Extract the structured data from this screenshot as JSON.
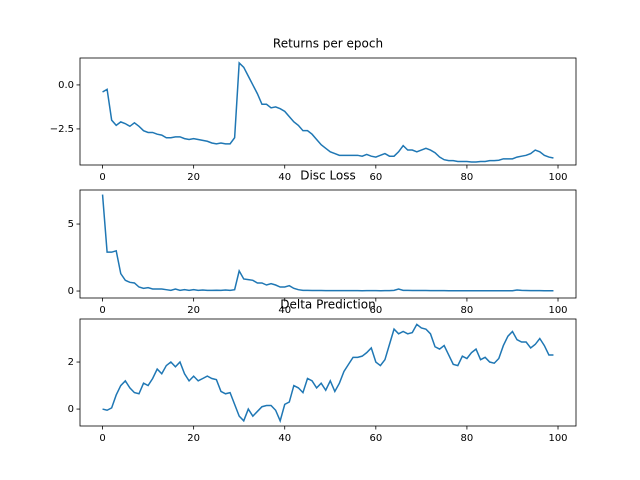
{
  "chart_data": [
    {
      "type": "line",
      "title": "Returns per epoch",
      "color": "#1f77b4",
      "x": [
        0,
        1,
        2,
        3,
        4,
        5,
        6,
        7,
        8,
        9,
        10,
        11,
        12,
        13,
        14,
        15,
        16,
        17,
        18,
        19,
        20,
        21,
        22,
        23,
        24,
        25,
        26,
        27,
        28,
        29,
        30,
        31,
        32,
        33,
        34,
        35,
        36,
        37,
        38,
        39,
        40,
        41,
        42,
        43,
        44,
        45,
        46,
        47,
        48,
        49,
        50,
        51,
        52,
        53,
        54,
        55,
        56,
        57,
        58,
        59,
        60,
        61,
        62,
        63,
        64,
        65,
        66,
        67,
        68,
        69,
        70,
        71,
        72,
        73,
        74,
        75,
        76,
        77,
        78,
        79,
        80,
        81,
        82,
        83,
        84,
        85,
        86,
        87,
        88,
        89,
        90,
        91,
        92,
        93,
        94,
        95,
        96,
        97,
        98,
        99
      ],
      "values": [
        -0.4,
        -0.25,
        -2.0,
        -2.3,
        -2.1,
        -2.2,
        -2.35,
        -2.15,
        -2.35,
        -2.6,
        -2.7,
        -2.7,
        -2.8,
        -2.85,
        -3.0,
        -3.0,
        -2.95,
        -2.95,
        -3.05,
        -3.1,
        -3.05,
        -3.1,
        -3.15,
        -3.2,
        -3.3,
        -3.35,
        -3.3,
        -3.35,
        -3.35,
        -3.0,
        1.25,
        1.0,
        0.5,
        0.0,
        -0.5,
        -1.1,
        -1.1,
        -1.3,
        -1.25,
        -1.35,
        -1.5,
        -1.8,
        -2.1,
        -2.3,
        -2.6,
        -2.6,
        -2.8,
        -3.1,
        -3.4,
        -3.6,
        -3.8,
        -3.9,
        -4.0,
        -4.0,
        -4.0,
        -4.0,
        -4.0,
        -4.05,
        -3.95,
        -4.05,
        -4.1,
        -4.0,
        -3.9,
        -4.05,
        -4.05,
        -3.8,
        -3.45,
        -3.7,
        -3.7,
        -3.8,
        -3.7,
        -3.6,
        -3.7,
        -3.85,
        -4.1,
        -4.25,
        -4.3,
        -4.3,
        -4.35,
        -4.35,
        -4.35,
        -4.38,
        -4.38,
        -4.35,
        -4.35,
        -4.3,
        -4.3,
        -4.28,
        -4.2,
        -4.2,
        -4.2,
        -4.1,
        -4.05,
        -4.0,
        -3.9,
        -3.7,
        -3.8,
        -4.0,
        -4.1,
        -4.15
      ],
      "xlim": [
        -4.95,
        103.95
      ],
      "xticks": [
        0,
        20,
        40,
        60,
        80,
        100
      ],
      "ylim": [
        -4.55,
        1.53
      ],
      "yticks": [
        {
          "value": 0,
          "label": "0.0"
        },
        {
          "value": -2.5,
          "label": "−2.5"
        }
      ]
    },
    {
      "type": "line",
      "title": "Disc Loss",
      "color": "#1f77b4",
      "x": [
        0,
        1,
        2,
        3,
        4,
        5,
        6,
        7,
        8,
        9,
        10,
        11,
        12,
        13,
        14,
        15,
        16,
        17,
        18,
        19,
        20,
        21,
        22,
        23,
        24,
        25,
        26,
        27,
        28,
        29,
        30,
        31,
        32,
        33,
        34,
        35,
        36,
        37,
        38,
        39,
        40,
        41,
        42,
        43,
        44,
        45,
        46,
        47,
        48,
        49,
        50,
        51,
        52,
        53,
        54,
        55,
        56,
        57,
        58,
        59,
        60,
        61,
        62,
        63,
        64,
        65,
        66,
        67,
        68,
        69,
        70,
        71,
        72,
        73,
        74,
        75,
        76,
        77,
        78,
        79,
        80,
        81,
        82,
        83,
        84,
        85,
        86,
        87,
        88,
        89,
        90,
        91,
        92,
        93,
        94,
        95,
        96,
        97,
        98,
        99
      ],
      "values": [
        7.2,
        2.9,
        2.9,
        3.0,
        1.3,
        0.8,
        0.65,
        0.6,
        0.3,
        0.2,
        0.25,
        0.15,
        0.15,
        0.15,
        0.1,
        0.05,
        0.15,
        0.05,
        0.1,
        0.05,
        0.1,
        0.05,
        0.08,
        0.05,
        0.05,
        0.06,
        0.05,
        0.08,
        0.05,
        0.1,
        1.5,
        0.9,
        0.85,
        0.8,
        0.6,
        0.6,
        0.45,
        0.55,
        0.45,
        0.3,
        0.3,
        0.4,
        0.2,
        0.1,
        0.05,
        0.05,
        0.04,
        0.04,
        0.04,
        0.03,
        0.03,
        0.03,
        0.03,
        0.03,
        0.03,
        0.03,
        0.03,
        0.02,
        0.03,
        0.03,
        0.03,
        0.02,
        0.03,
        0.03,
        0.05,
        0.15,
        0.05,
        0.05,
        0.04,
        0.04,
        0.04,
        0.04,
        0.03,
        0.03,
        0.03,
        0.03,
        0.02,
        0.02,
        0.02,
        0.02,
        0.02,
        0.02,
        0.02,
        0.02,
        0.02,
        0.02,
        0.02,
        0.02,
        0.02,
        0.02,
        0.02,
        0.08,
        0.05,
        0.04,
        0.03,
        0.03,
        0.03,
        0.02,
        0.02,
        0.02
      ],
      "xlim": [
        -4.95,
        103.95
      ],
      "xticks": [
        0,
        20,
        40,
        60,
        80,
        100
      ],
      "ylim": [
        -0.52,
        7.54
      ],
      "yticks": [
        0,
        5
      ]
    },
    {
      "type": "line",
      "title": "Delta Prediction",
      "color": "#1f77b4",
      "x": [
        0,
        1,
        2,
        3,
        4,
        5,
        6,
        7,
        8,
        9,
        10,
        11,
        12,
        13,
        14,
        15,
        16,
        17,
        18,
        19,
        20,
        21,
        22,
        23,
        24,
        25,
        26,
        27,
        28,
        29,
        30,
        31,
        32,
        33,
        34,
        35,
        36,
        37,
        38,
        39,
        40,
        41,
        42,
        43,
        44,
        45,
        46,
        47,
        48,
        49,
        50,
        51,
        52,
        53,
        54,
        55,
        56,
        57,
        58,
        59,
        60,
        61,
        62,
        63,
        64,
        65,
        66,
        67,
        68,
        69,
        70,
        71,
        72,
        73,
        74,
        75,
        76,
        77,
        78,
        79,
        80,
        81,
        82,
        83,
        84,
        85,
        86,
        87,
        88,
        89,
        90,
        91,
        92,
        93,
        94,
        95,
        96,
        97,
        98,
        99
      ],
      "values": [
        0,
        -0.05,
        0.05,
        0.6,
        1.0,
        1.2,
        0.9,
        0.7,
        0.65,
        1.1,
        1.0,
        1.3,
        1.7,
        1.5,
        1.85,
        2.0,
        1.8,
        2.0,
        1.5,
        1.2,
        1.4,
        1.2,
        1.3,
        1.4,
        1.3,
        1.25,
        0.75,
        0.65,
        0.7,
        0.2,
        -0.3,
        -0.5,
        0.0,
        -0.3,
        -0.1,
        0.1,
        0.15,
        0.15,
        -0.05,
        -0.5,
        0.2,
        0.3,
        1.0,
        0.9,
        0.7,
        1.3,
        1.2,
        0.9,
        1.1,
        0.8,
        1.2,
        0.75,
        1.1,
        1.6,
        1.9,
        2.2,
        2.2,
        2.25,
        2.4,
        2.6,
        2.0,
        1.85,
        2.1,
        2.75,
        3.4,
        3.2,
        3.3,
        3.2,
        3.25,
        3.6,
        3.45,
        3.4,
        3.2,
        2.65,
        2.55,
        2.7,
        2.3,
        1.9,
        1.85,
        2.25,
        2.15,
        2.4,
        2.55,
        2.1,
        2.2,
        2.0,
        1.95,
        2.15,
        2.7,
        3.1,
        3.3,
        2.95,
        2.85,
        2.85,
        2.6,
        2.75,
        3.0,
        2.7,
        2.3,
        2.3
      ],
      "xlim": [
        -4.95,
        103.95
      ],
      "xticks": [
        0,
        20,
        40,
        60,
        80,
        100
      ],
      "ylim": [
        -0.72,
        3.83
      ],
      "yticks": [
        0,
        2
      ]
    }
  ]
}
